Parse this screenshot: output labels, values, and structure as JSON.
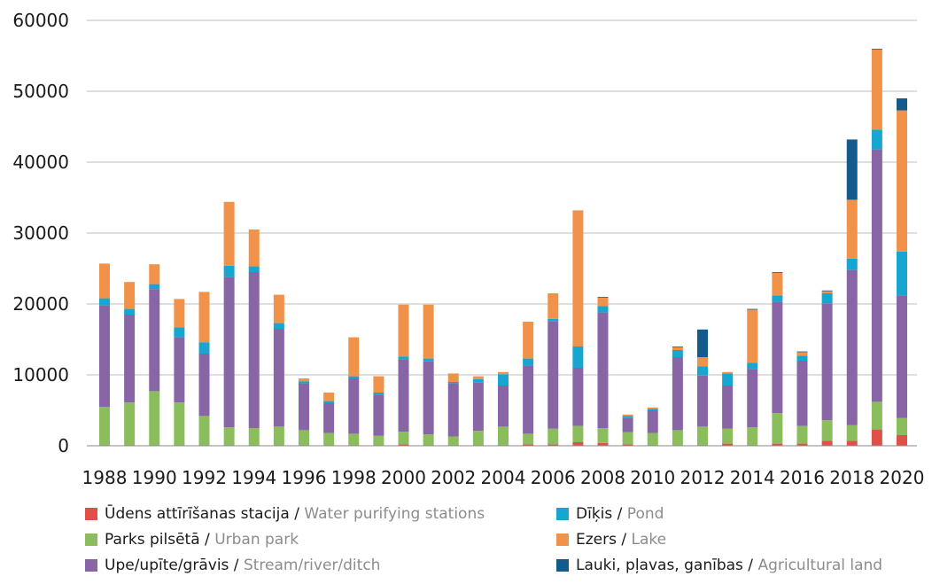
{
  "chart_data": {
    "type": "bar",
    "stacked": true,
    "title": "",
    "xlabel": "",
    "ylabel": "",
    "ylim": [
      0,
      60000
    ],
    "yticks": [
      0,
      10000,
      20000,
      30000,
      40000,
      50000,
      60000
    ],
    "grid": "horizontal",
    "legend_position": "bottom",
    "x": [
      1988,
      1989,
      1990,
      1991,
      1992,
      1993,
      1994,
      1995,
      1996,
      1997,
      1998,
      1999,
      2000,
      2001,
      2002,
      2003,
      2004,
      2005,
      2006,
      2007,
      2008,
      2009,
      2010,
      2011,
      2012,
      2013,
      2014,
      2015,
      2016,
      2017,
      2018,
      2019,
      2020
    ],
    "xtick_labels": [
      "1988",
      "1990",
      "1992",
      "1994",
      "1996",
      "1998",
      "2000",
      "2002",
      "2004",
      "2006",
      "2008",
      "2010",
      "2012",
      "2014",
      "2016",
      "2018",
      "2020"
    ],
    "series": [
      {
        "name_lv": "Ūdens attīrīšanas stacija",
        "name_en": "Water purifying stations",
        "color": "#e0504b",
        "values": [
          0,
          0,
          0,
          0,
          0,
          0,
          0,
          0,
          0,
          0,
          0,
          0,
          200,
          0,
          0,
          0,
          0,
          200,
          200,
          500,
          400,
          200,
          0,
          0,
          0,
          300,
          0,
          300,
          300,
          700,
          700,
          2300,
          1500
        ]
      },
      {
        "name_lv": "Parks pilsētā",
        "name_en": "Urban park",
        "color": "#8cbd5d",
        "values": [
          5500,
          6100,
          7700,
          6100,
          4200,
          2600,
          2500,
          2700,
          2200,
          1800,
          1700,
          1400,
          1800,
          1600,
          1300,
          2100,
          2700,
          1500,
          2200,
          2300,
          2100,
          1700,
          1800,
          2200,
          2700,
          2100,
          2600,
          4300,
          2500,
          2900,
          2200,
          3900,
          2400
        ]
      },
      {
        "name_lv": "Upe/upīte/grāvis",
        "name_en": "Stream/river/ditch",
        "color": "#8866a6",
        "values": [
          14300,
          12400,
          14400,
          9200,
          8800,
          21200,
          22000,
          13800,
          6600,
          4200,
          7800,
          5800,
          10200,
          10300,
          7500,
          6800,
          5800,
          9600,
          15200,
          8200,
          16300,
          2000,
          3200,
          10300,
          7200,
          6100,
          8200,
          15700,
          9200,
          16500,
          21900,
          35600,
          17300
        ]
      },
      {
        "name_lv": "Dīķis",
        "name_en": "Pond",
        "color": "#16a6cf",
        "values": [
          1000,
          800,
          700,
          1400,
          1600,
          1600,
          800,
          800,
          300,
          300,
          300,
          300,
          400,
          400,
          200,
          500,
          1600,
          1000,
          300,
          3000,
          900,
          300,
          200,
          1000,
          1300,
          1700,
          900,
          900,
          700,
          1400,
          1600,
          2800,
          6200
        ]
      },
      {
        "name_lv": "Ezers",
        "name_en": "Lake",
        "color": "#f0924a",
        "values": [
          4900,
          3800,
          2800,
          4000,
          7100,
          9000,
          5200,
          4000,
          400,
          1200,
          5500,
          2300,
          7300,
          7600,
          1200,
          400,
          300,
          5200,
          3600,
          19200,
          1200,
          200,
          200,
          400,
          1300,
          200,
          7500,
          3200,
          500,
          300,
          8300,
          11300,
          19900
        ]
      },
      {
        "name_lv": "Lauki, pļavas, ganības",
        "name_en": "Agricultural land",
        "color": "#135b8a",
        "values": [
          0,
          0,
          0,
          0,
          0,
          0,
          0,
          0,
          0,
          0,
          0,
          0,
          0,
          0,
          0,
          0,
          0,
          0,
          0,
          0,
          100,
          0,
          0,
          100,
          3900,
          0,
          100,
          100,
          100,
          100,
          8500,
          100,
          1700
        ]
      }
    ]
  }
}
